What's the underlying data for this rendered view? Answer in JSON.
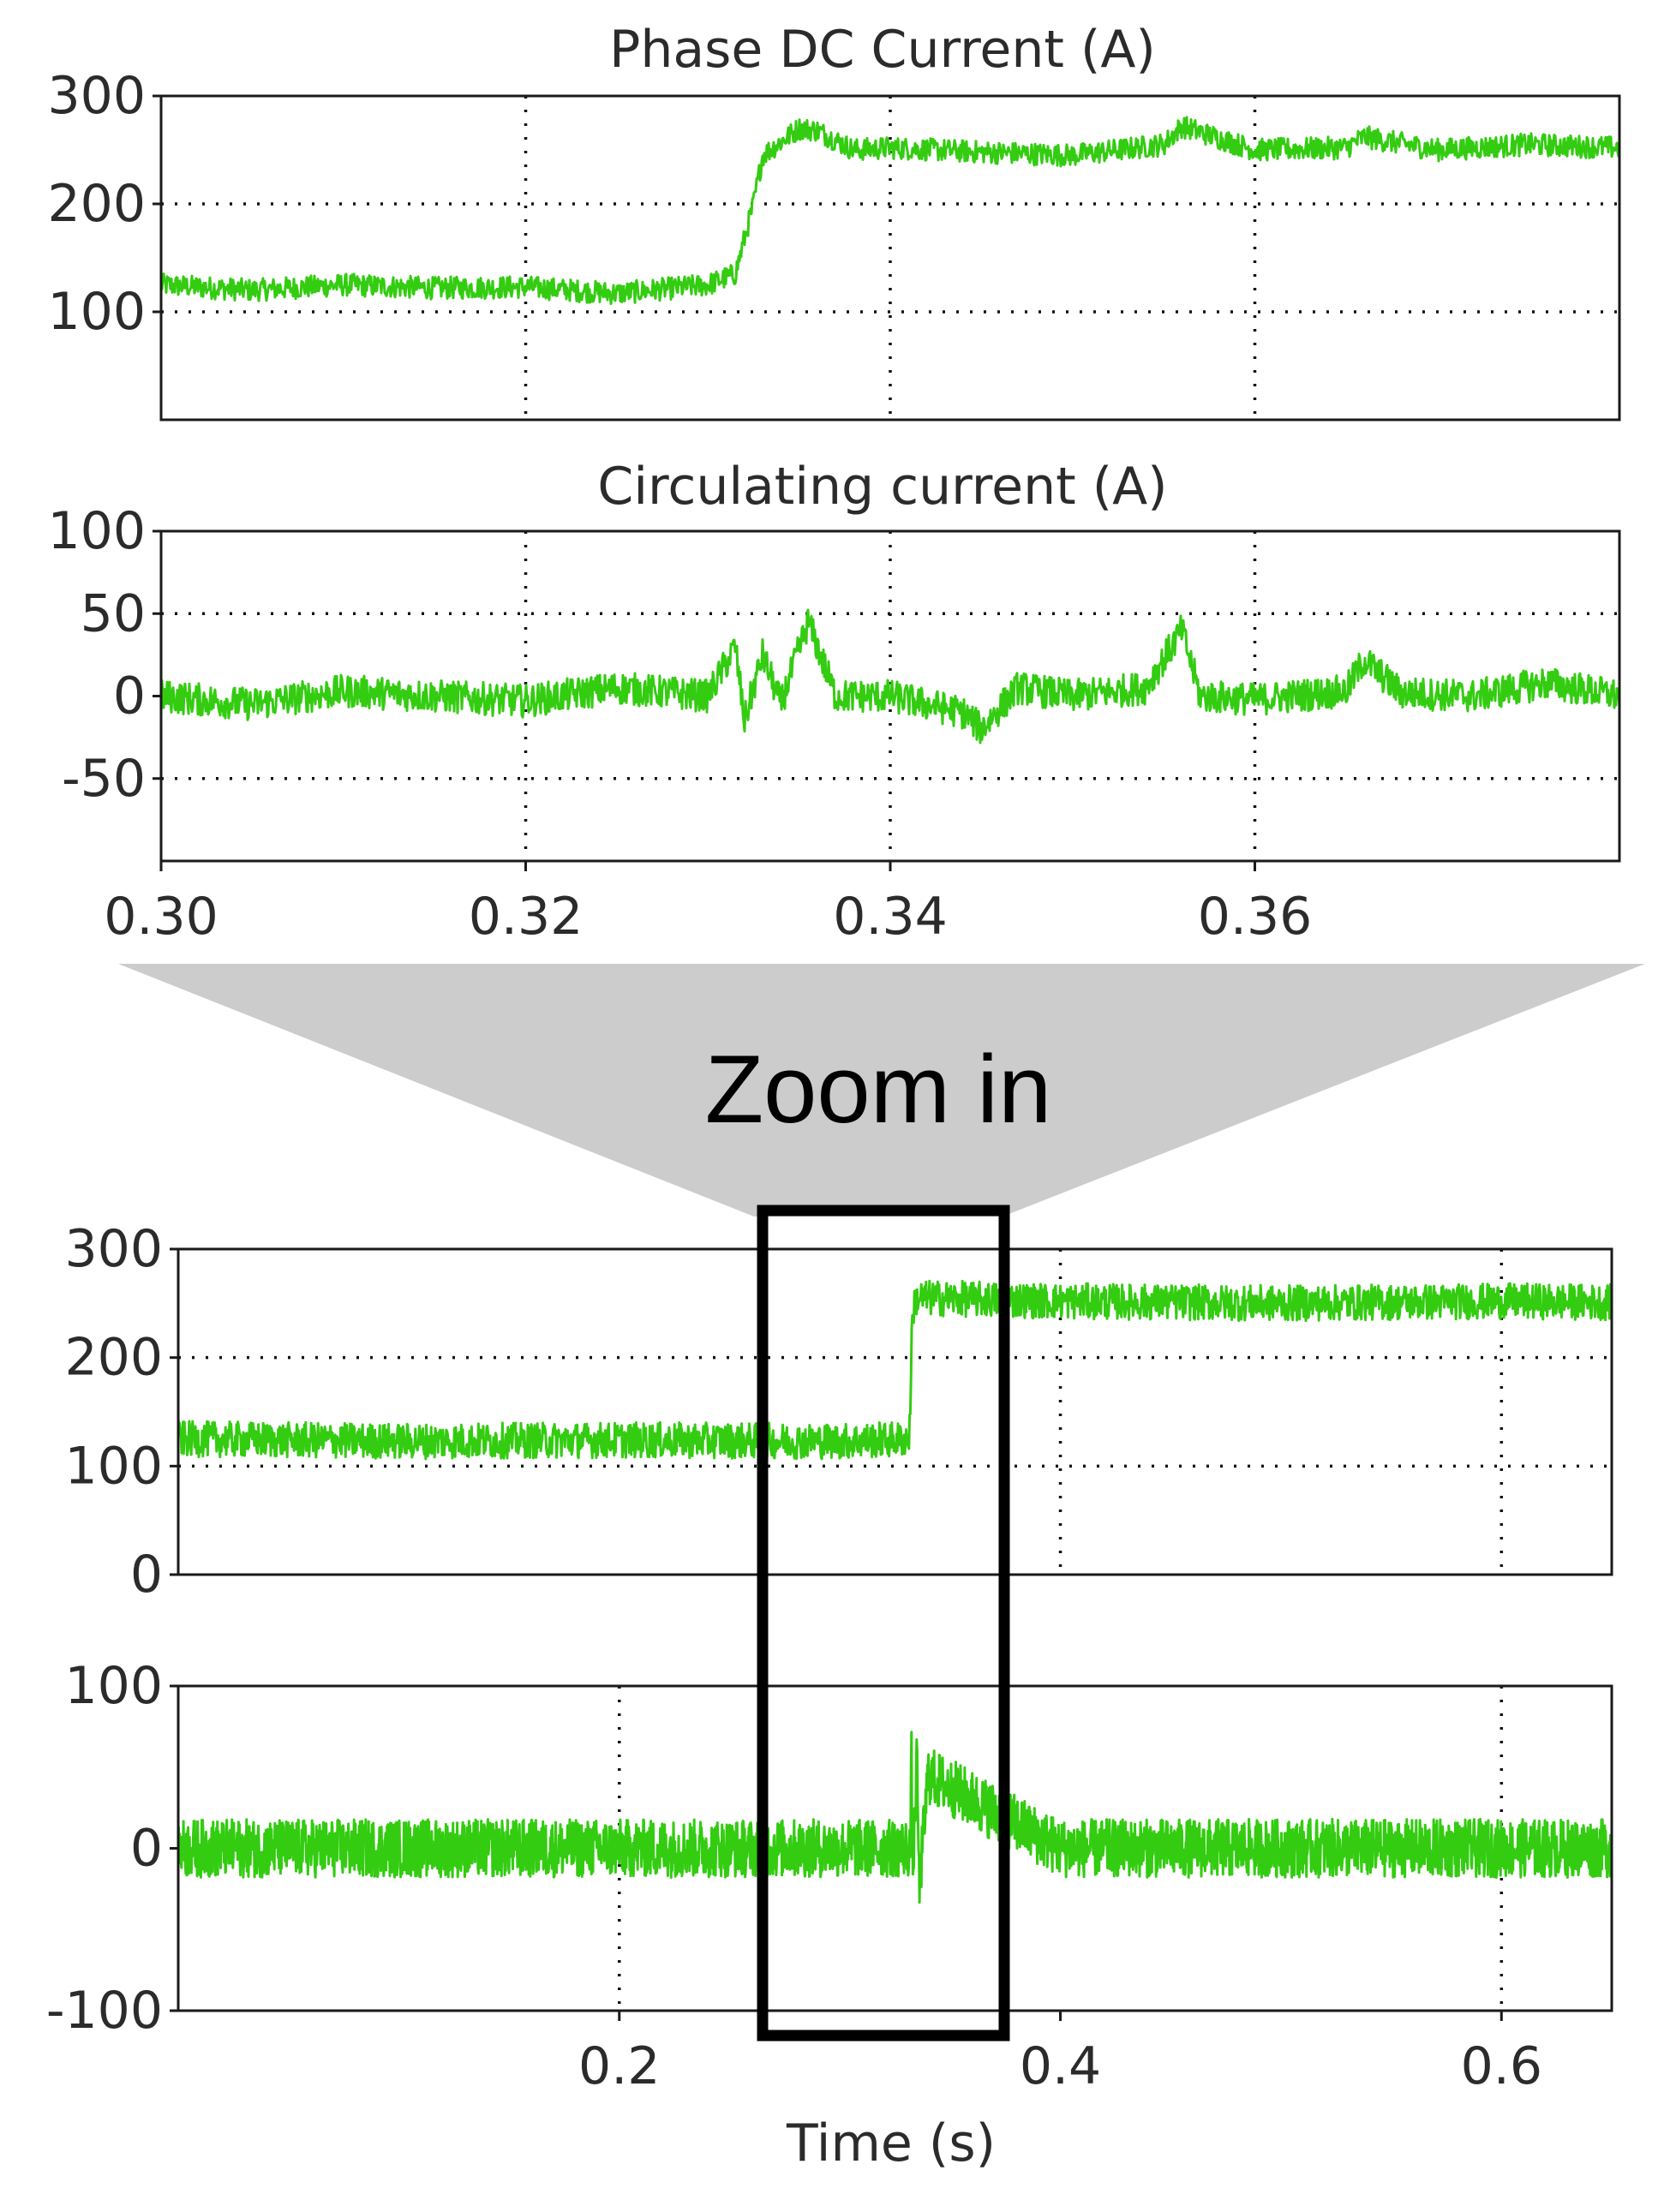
{
  "colors": {
    "series": "#33cc11",
    "frame": "#1a1a1a",
    "zoom_funnel": "#cccccc",
    "zoom_box": "#000000"
  },
  "zoom_label": "Zoom in",
  "chart_data": [
    {
      "id": "top-dc",
      "type": "line",
      "title": "Phase DC Current (A)",
      "xlim": [
        0.3,
        0.38
      ],
      "ylim": [
        0,
        300
      ],
      "yticks": [
        "300",
        "200",
        "100"
      ],
      "yticks_values": [
        300,
        200,
        100
      ],
      "grid": true,
      "series": [
        {
          "values_note": "",
          "x": [
            0.3,
            0.305,
            0.31,
            0.315,
            0.32,
            0.325,
            0.33,
            0.3315,
            0.3325,
            0.333,
            0.335,
            0.336,
            0.338,
            0.34,
            0.345,
            0.35,
            0.355,
            0.356,
            0.36,
            0.365,
            0.366,
            0.37,
            0.375,
            0.38
          ],
          "y": [
            125,
            120,
            125,
            122,
            123,
            117,
            125,
            135,
            200,
            245,
            270,
            268,
            250,
            252,
            248,
            245,
            255,
            272,
            250,
            252,
            262,
            250,
            255,
            252
          ]
        }
      ]
    },
    {
      "id": "top-circ",
      "type": "line",
      "title": "Circulating current (A)",
      "xlim": [
        0.3,
        0.38
      ],
      "ylim": [
        -100,
        100
      ],
      "yticks": [
        "100",
        "50",
        "0",
        "-50"
      ],
      "yticks_values": [
        100,
        50,
        0,
        -50
      ],
      "xticks": [
        "0.30",
        "0.32",
        "0.34",
        "0.36"
      ],
      "xticks_values": [
        0.3,
        0.32,
        0.34,
        0.36
      ],
      "grid": true,
      "series": [
        {
          "x": [
            0.3,
            0.305,
            0.31,
            0.315,
            0.32,
            0.325,
            0.33,
            0.3315,
            0.332,
            0.333,
            0.334,
            0.3355,
            0.337,
            0.34,
            0.344,
            0.345,
            0.347,
            0.35,
            0.354,
            0.356,
            0.357,
            0.36,
            0.365,
            0.366,
            0.368,
            0.372,
            0.376,
            0.38
          ],
          "y": [
            0,
            -5,
            3,
            0,
            -3,
            5,
            0,
            30,
            -15,
            25,
            -5,
            45,
            0,
            0,
            -10,
            -20,
            5,
            0,
            5,
            40,
            0,
            -2,
            3,
            22,
            2,
            0,
            8,
            0
          ]
        }
      ]
    },
    {
      "id": "bottom-dc",
      "type": "line",
      "xlim": [
        0.0,
        0.65
      ],
      "ylim": [
        0,
        300
      ],
      "yticks": [
        "300",
        "200",
        "100",
        "0"
      ],
      "yticks_values": [
        300,
        200,
        100,
        0
      ],
      "grid": true,
      "series": [
        {
          "x": [
            0.0,
            0.1,
            0.2,
            0.3,
            0.3315,
            0.333,
            0.335,
            0.4,
            0.5,
            0.6,
            0.65
          ],
          "y": [
            125,
            123,
            124,
            123,
            125,
            245,
            255,
            252,
            250,
            252,
            251
          ]
        }
      ]
    },
    {
      "id": "bottom-circ",
      "type": "line",
      "xlabel": "Time (s)",
      "xlim": [
        0.0,
        0.65
      ],
      "ylim": [
        -100,
        100
      ],
      "yticks": [
        "100",
        "0",
        "-100"
      ],
      "yticks_values": [
        100,
        0,
        -100
      ],
      "xticks": [
        "0.2",
        "0.4",
        "0.6"
      ],
      "xticks_values": [
        0.2,
        0.4,
        0.6
      ],
      "grid": true,
      "series": [
        {
          "x": [
            0.0,
            0.1,
            0.2,
            0.3,
            0.332,
            0.3325,
            0.333,
            0.335,
            0.336,
            0.34,
            0.4,
            0.5,
            0.6,
            0.65
          ],
          "y": [
            0,
            0,
            0,
            0,
            0,
            55,
            -20,
            55,
            -25,
            45,
            0,
            0,
            0,
            0
          ]
        }
      ]
    }
  ]
}
